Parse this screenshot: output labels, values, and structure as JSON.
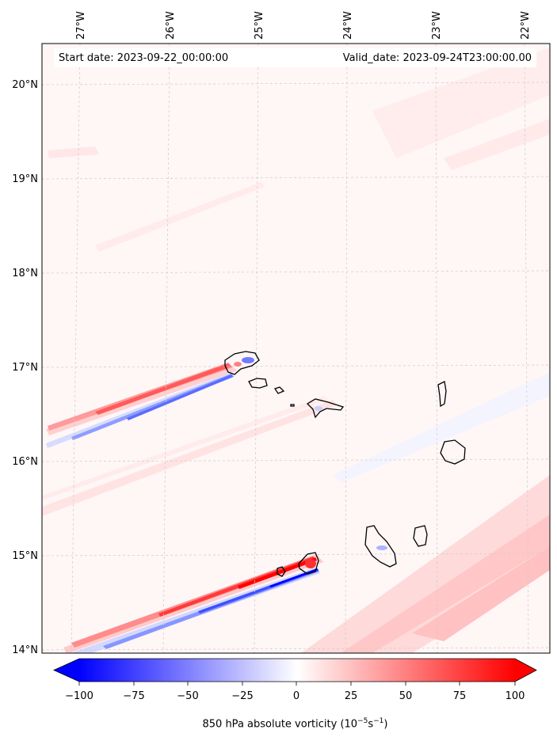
{
  "map": {
    "start_label": "Start date: 2023-09-22_00:00:00",
    "valid_label": "Valid_date: 2023-09-24T23:00:00.00",
    "lon_labels": [
      "27°W",
      "26°W",
      "25°W",
      "24°W",
      "23°W",
      "22°W"
    ],
    "lat_labels": [
      "20°N",
      "19°N",
      "18°N",
      "17°N",
      "16°N",
      "15°N",
      "14°N"
    ],
    "gridlines": true,
    "field": "850 hPa absolute vorticity",
    "colors": {
      "negative": "#0000ff",
      "zero": "#ffffff",
      "positive": "#ff0000",
      "background_tint": "#fff5f5",
      "coastline": "#000000"
    }
  },
  "colorbar": {
    "ticks": [
      "−100",
      "−75",
      "−50",
      "−25",
      "0",
      "25",
      "50",
      "75",
      "100"
    ],
    "label_prefix": "850 hPa absolute vorticity (10",
    "label_exp1": "−5",
    "label_mid": "s",
    "label_exp2": "−1",
    "label_suffix": ")",
    "range": [
      -100,
      100
    ],
    "extend": "both"
  }
}
